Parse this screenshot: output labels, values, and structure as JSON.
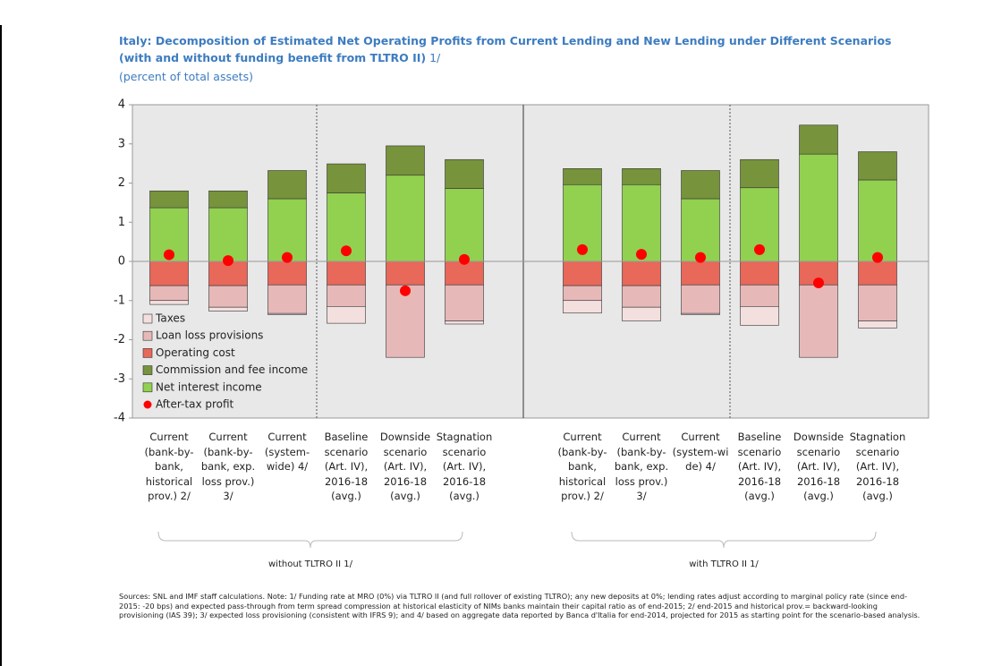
{
  "chart_data": {
    "type": "bar",
    "stacked": true,
    "title": "Italy: Decomposition of Estimated Net Operating Profits from Current Lending and New Lending under Different Scenarios (with and without funding benefit from TLTRO II)",
    "title_note": "1/",
    "subtitle": "(percent of total assets)",
    "categories": [
      "Current\n(bank-by-\nbank,\nhistorical\nprov.) 2/",
      "Current\n(bank-by-\nbank, exp.\nloss prov.)\n3/",
      "Current\n(system-\nwide) 4/",
      "Baseline\nscenario\n(Art. IV),\n2016-18\n(avg.)",
      "Downside\nscenario\n(Art. IV),\n2016-18\n(avg.)",
      "Stagnation\nscenario\n(Art. IV),\n2016-18\n(avg.)",
      null,
      "Current\n(bank-by-\nbank,\nhistorical\nprov.) 2/",
      "Current\n(bank-by-\nbank, exp.\nloss prov.)\n3/",
      "Current\n(system-wi\nde) 4/",
      "Baseline\nscenario\n(Art. IV),\n2016-18\n(avg.)",
      "Downside\nscenario\n(Art. IV),\n2016-18\n(avg.)",
      "Stagnation\nscenario\n(Art. IV),\n2016-18\n(avg.)"
    ],
    "series": [
      {
        "name": "Taxes",
        "color": "#f4dfdf",
        "values": [
          -0.1,
          -0.1,
          -0.03,
          -0.43,
          0,
          -0.08,
          null,
          -0.32,
          -0.35,
          -0.03,
          -0.48,
          0,
          -0.18
        ]
      },
      {
        "name": "Loan loss provisions",
        "color": "#e6b9b8",
        "values": [
          -0.38,
          -0.55,
          -0.73,
          -0.55,
          -1.85,
          -0.92,
          null,
          -0.38,
          -0.55,
          -0.73,
          -0.55,
          -1.85,
          -0.92
        ]
      },
      {
        "name": "Operating cost",
        "color": "#e8685a",
        "values": [
          -0.62,
          -0.62,
          -0.6,
          -0.6,
          -0.6,
          -0.6,
          null,
          -0.62,
          -0.62,
          -0.6,
          -0.6,
          -0.6,
          -0.6
        ]
      },
      {
        "name": "Commission and fee income",
        "color": "#77933c",
        "values": [
          0.43,
          0.43,
          0.72,
          0.74,
          0.75,
          0.74,
          null,
          0.41,
          0.41,
          0.72,
          0.72,
          0.74,
          0.72
        ]
      },
      {
        "name": "Net interest income",
        "color": "#92d050",
        "values": [
          1.37,
          1.37,
          1.6,
          1.75,
          2.2,
          1.86,
          null,
          1.96,
          1.96,
          1.6,
          1.88,
          2.74,
          2.08
        ]
      },
      {
        "name": "After-tax profit",
        "color": "#ff0000",
        "type": "scatter",
        "values": [
          0.17,
          0.02,
          0.1,
          0.27,
          -0.75,
          0.05,
          null,
          0.3,
          0.18,
          0.1,
          0.3,
          -0.55,
          0.1
        ]
      }
    ],
    "ylim": [
      -4,
      4
    ],
    "yticks": [
      -4,
      -3,
      -2,
      -1,
      0,
      1,
      2,
      3,
      4
    ],
    "legend_position": "lower left",
    "groups": [
      "without TLTRO II 1/",
      "with TLTRO II 1/"
    ],
    "note": "Sources: SNL and IMF staff calculations. Note: 1/ Funding rate at MRO (0%) via TLTRO II (and full rollover of existing TLTRO); any new deposits at 0%; lending rates adjust according to marginal policy rate (since end-2015: -20 bps) and expected pass-through from term spread compression at historical elasticity of NIMs banks maintain their capital ratio as of end-2015; 2/ end-2015 and historical prov.= backward-looking provisioning (IAS 39); 3/ expected loss provisioning (consistent with IFRS 9); and 4/ based on aggregate data reported by Banca d'Italia for end-2014, projected for 2015 as starting point for the scenario-based analysis."
  }
}
